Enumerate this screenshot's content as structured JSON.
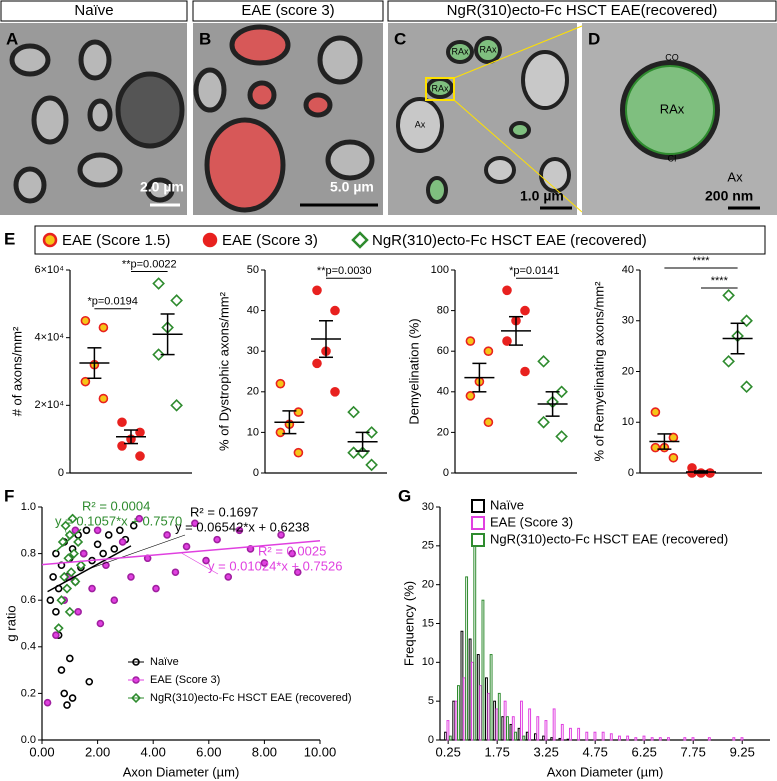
{
  "panels": [
    {
      "letter": "A",
      "header": "Naïve",
      "scale_bar": "2.0 µm"
    },
    {
      "letter": "B",
      "header": "EAE (score 3)",
      "scale_bar": "5.0 µm"
    },
    {
      "letter": "C",
      "header": "NgR(310)ecto-Fc HSCT EAE(recovered)",
      "scale_bar": "1.0 µm",
      "labels": [
        "RAx",
        "RAx",
        "RAx",
        "Ax"
      ]
    },
    {
      "letter": "D",
      "scale_bar": "200 nm",
      "labels": [
        "CO",
        "RAx",
        "CI",
        "Ax"
      ]
    }
  ],
  "panel_e": {
    "letter": "E",
    "legend": [
      "EAE (Score 1.5)",
      "EAE (Score 3)",
      "NgR(310)ecto-Fc HSCT EAE (recovered)"
    ]
  },
  "chart_data": [
    {
      "type": "dot",
      "ylabel": "# of axons/mm²",
      "ylim": [
        0,
        60000
      ],
      "yticks": [
        0,
        {
          "value": 20000,
          "label": "2×10⁴"
        },
        {
          "value": 40000,
          "label": "4×10⁴"
        },
        {
          "value": 60000,
          "label": "6×10⁴"
        }
      ],
      "series": [
        {
          "color": "#f5c518",
          "stroke": "#e8211f",
          "marker": "circle",
          "values": [
            45000,
            43000,
            32000,
            27000,
            22000
          ],
          "mean": 32500,
          "sem": 4500
        },
        {
          "color": "#e8211f",
          "stroke": "#e8211f",
          "marker": "circle",
          "values": [
            15000,
            12000,
            10000,
            8000,
            5000
          ],
          "mean": 10700,
          "sem": 2000
        },
        {
          "color": "#ffffff",
          "stroke": "#2e8b2e",
          "marker": "diamond",
          "values": [
            56000,
            51000,
            43000,
            35000,
            20000
          ],
          "mean": 41000,
          "sem": 6000
        }
      ],
      "annotations": [
        {
          "text": "*p=0.0194",
          "groups": [
            0,
            1
          ]
        },
        {
          "text": "**p=0.0022",
          "groups": [
            1,
            2
          ]
        }
      ]
    },
    {
      "type": "dot",
      "ylabel": "% of Dystrophic axons/mm²",
      "ylim": [
        0,
        50
      ],
      "yticks": [
        0,
        10,
        20,
        30,
        40,
        50
      ],
      "series": [
        {
          "color": "#f5c518",
          "stroke": "#e8211f",
          "marker": "circle",
          "values": [
            22,
            15,
            12,
            10,
            5
          ],
          "mean": 12.5,
          "sem": 2.8
        },
        {
          "color": "#e8211f",
          "stroke": "#e8211f",
          "marker": "circle",
          "values": [
            45,
            40,
            30,
            27,
            20
          ],
          "mean": 33,
          "sem": 4.5
        },
        {
          "color": "#ffffff",
          "stroke": "#2e8b2e",
          "marker": "diamond",
          "values": [
            15,
            10,
            5,
            5,
            2
          ],
          "mean": 7.7,
          "sem": 2.3
        }
      ],
      "annotations": [
        {
          "text": "**p=0.0030",
          "groups": [
            1,
            2
          ]
        }
      ]
    },
    {
      "type": "dot",
      "ylabel": "Demyelination (%)",
      "ylim": [
        0,
        100
      ],
      "yticks": [
        0,
        20,
        40,
        60,
        80,
        100
      ],
      "series": [
        {
          "color": "#f5c518",
          "stroke": "#e8211f",
          "marker": "circle",
          "values": [
            65,
            60,
            45,
            38,
            25
          ],
          "mean": 47,
          "sem": 7
        },
        {
          "color": "#e8211f",
          "stroke": "#e8211f",
          "marker": "circle",
          "values": [
            90,
            80,
            75,
            65,
            50
          ],
          "mean": 70,
          "sem": 7
        },
        {
          "color": "#ffffff",
          "stroke": "#2e8b2e",
          "marker": "diamond",
          "values": [
            55,
            40,
            35,
            25,
            18
          ],
          "mean": 34,
          "sem": 6
        }
      ],
      "annotations": [
        {
          "text": "*p=0.0141",
          "groups": [
            1,
            2
          ]
        }
      ]
    },
    {
      "type": "dot",
      "ylabel": "% of Remyelinating axons/mm²",
      "ylim": [
        0,
        40
      ],
      "yticks": [
        0,
        10,
        20,
        30,
        40
      ],
      "series": [
        {
          "color": "#f5c518",
          "stroke": "#e8211f",
          "marker": "circle",
          "values": [
            12,
            7,
            5,
            5,
            3
          ],
          "mean": 6.2,
          "sem": 1.5
        },
        {
          "color": "#e8211f",
          "stroke": "#e8211f",
          "marker": "circle",
          "values": [
            1,
            0,
            0,
            0,
            0
          ],
          "mean": 0.2,
          "sem": 0.2
        },
        {
          "color": "#ffffff",
          "stroke": "#2e8b2e",
          "marker": "diamond",
          "values": [
            35,
            30,
            27,
            22,
            17
          ],
          "mean": 26.5,
          "sem": 3
        }
      ],
      "annotations": [
        {
          "text": "****",
          "groups": [
            0,
            2
          ]
        },
        {
          "text": "****",
          "groups": [
            1,
            2
          ]
        }
      ]
    },
    {
      "type": "scatter",
      "letter": "F",
      "xlabel": "Axon Diameter (µm)",
      "ylabel": "g ratio",
      "xlim": [
        0,
        10
      ],
      "ylim": [
        0,
        1
      ],
      "xticks": [
        {
          "value": 0,
          "label": "0.00"
        },
        {
          "value": 2,
          "label": "2.00"
        },
        {
          "value": 4,
          "label": "4.00"
        },
        {
          "value": 6,
          "label": "6.00"
        },
        {
          "value": 8,
          "label": "8.00"
        },
        {
          "value": 10,
          "label": "10.00"
        }
      ],
      "yticks": [
        {
          "value": 0,
          "label": "0.0"
        },
        0.2,
        0.4,
        0.6,
        0.8,
        {
          "value": 1,
          "label": "1.0"
        }
      ],
      "series": [
        {
          "name": "Naïve",
          "color": "#000000",
          "marker": "circle-open",
          "x": [
            0.3,
            0.4,
            0.5,
            0.5,
            0.6,
            0.7,
            0.7,
            0.8,
            0.8,
            0.9,
            0.9,
            1.0,
            1.0,
            1.1,
            1.1,
            1.2,
            1.3,
            1.4,
            1.5,
            1.6,
            1.8,
            2.0,
            2.2,
            2.4,
            2.6,
            2.8,
            3.0,
            3.3,
            1.7,
            0.6
          ],
          "values": [
            0.6,
            0.7,
            0.55,
            0.8,
            0.65,
            0.75,
            0.3,
            0.85,
            0.2,
            0.7,
            0.15,
            0.78,
            0.35,
            0.82,
            0.18,
            0.68,
            0.88,
            0.74,
            0.8,
            0.9,
            0.77,
            0.84,
            0.8,
            0.88,
            0.82,
            0.9,
            0.86,
            0.92,
            0.25,
            0.45
          ],
          "fit": {
            "slope": 0.06542,
            "intercept": 0.6238,
            "x_range": [
              0.2,
              3.2
            ]
          },
          "annotations": [
            "R² = 0.1697",
            "y = 0.06542*x + 0.6238"
          ]
        },
        {
          "name": "EAE (Score 3)",
          "color": "#e040e0",
          "marker": "circle",
          "x": [
            0.2,
            0.5,
            0.8,
            1.0,
            1.3,
            1.5,
            1.8,
            2.0,
            2.3,
            2.6,
            2.9,
            3.2,
            3.5,
            3.8,
            4.1,
            4.5,
            4.8,
            5.2,
            5.5,
            5.9,
            6.3,
            6.7,
            7.1,
            7.5,
            8.0,
            8.6,
            9.0,
            9.2,
            1.2,
            2.1
          ],
          "values": [
            0.16,
            0.45,
            0.6,
            0.7,
            0.55,
            0.8,
            0.65,
            0.9,
            0.75,
            0.6,
            0.85,
            0.7,
            0.95,
            0.78,
            0.65,
            0.88,
            0.72,
            0.83,
            0.93,
            0.77,
            0.86,
            0.7,
            0.9,
            0.82,
            0.76,
            0.88,
            0.8,
            0.72,
            0.9,
            0.5
          ],
          "fit": {
            "slope": 0.01024,
            "intercept": 0.7526,
            "x_range": [
              0,
              10
            ]
          },
          "annotations": [
            "R² = 0.0025",
            "y = 0.01024*x + 0.7526"
          ]
        },
        {
          "name": "NgR(310)ecto-Fc HSCT EAE (recovered)",
          "color": "#2e8b2e",
          "marker": "diamond-open",
          "x": [
            0.6,
            0.7,
            0.75,
            0.8,
            0.85,
            0.9,
            0.95,
            1.0,
            1.05,
            1.1,
            1.15,
            1.2,
            1.3,
            1.4,
            1.0
          ],
          "values": [
            0.48,
            0.6,
            0.85,
            0.7,
            0.92,
            0.65,
            0.78,
            0.88,
            0.72,
            0.95,
            0.8,
            0.68,
            0.85,
            0.75,
            0.55
          ],
          "fit": {
            "slope": 0.1057,
            "intercept": 0.757,
            "x_range": [
              0.5,
              1.4
            ]
          },
          "annotations": [
            "R² = 0.0004",
            "y = 0.1057*x + 0.7570"
          ]
        }
      ],
      "legend": "bottom-center"
    },
    {
      "type": "histogram",
      "letter": "G",
      "xlabel": "Axon Diameter (µm)",
      "ylabel": "Frequency (%)",
      "xlim": [
        0,
        10.1
      ],
      "ylim": [
        0,
        30
      ],
      "xticks": [
        0.25,
        1.75,
        3.25,
        4.75,
        6.25,
        7.75,
        9.25
      ],
      "yticks": [
        0,
        5,
        10,
        15,
        20,
        25,
        30
      ],
      "x": [
        0.25,
        0.5,
        0.75,
        1.0,
        1.25,
        1.5,
        1.75,
        2.0,
        2.25,
        2.5,
        2.75,
        3.0,
        3.25,
        3.5,
        3.75,
        4.0,
        4.25,
        4.5,
        4.75,
        5.0,
        5.25,
        5.5,
        5.75,
        6.0,
        6.25,
        6.5,
        6.75,
        7.0,
        7.25,
        7.5,
        7.75,
        8.0,
        8.25,
        8.5,
        8.75,
        9.0,
        9.25
      ],
      "series": [
        {
          "name": "Naïve",
          "color": "#000000",
          "values": [
            1,
            5,
            14,
            13,
            11,
            8,
            5,
            3,
            2,
            1.5,
            1,
            0.8,
            0.5,
            0.3,
            0.2,
            0.1,
            0,
            0,
            0,
            0,
            0,
            0,
            0,
            0,
            0,
            0,
            0,
            0,
            0,
            0,
            0,
            0,
            0,
            0,
            0,
            0,
            0
          ]
        },
        {
          "name": "EAE (Score 3)",
          "color": "#e040e0",
          "values": [
            2.5,
            5,
            8,
            10,
            7,
            6,
            4,
            5,
            3,
            5,
            4,
            3,
            2.5,
            4,
            2,
            1.5,
            1.5,
            1,
            1,
            1,
            0.8,
            0.5,
            0.5,
            0.3,
            0.5,
            0.3,
            0.3,
            0.3,
            0,
            0.3,
            0.3,
            0,
            0.3,
            0,
            0,
            0.3,
            0.3
          ]
        },
        {
          "name": "NgR(310)ecto-Fc HSCT EAE (recovered)",
          "color": "#2e8b2e",
          "values": [
            0.5,
            7,
            21,
            25,
            18,
            11,
            6,
            3,
            1,
            0.5,
            0,
            0,
            0,
            0,
            0,
            0,
            0,
            0,
            0,
            0,
            0,
            0,
            0,
            0,
            0,
            0,
            0,
            0,
            0,
            0,
            0,
            0,
            0,
            0,
            0,
            0,
            0
          ]
        }
      ],
      "legend": "upper-left"
    }
  ]
}
